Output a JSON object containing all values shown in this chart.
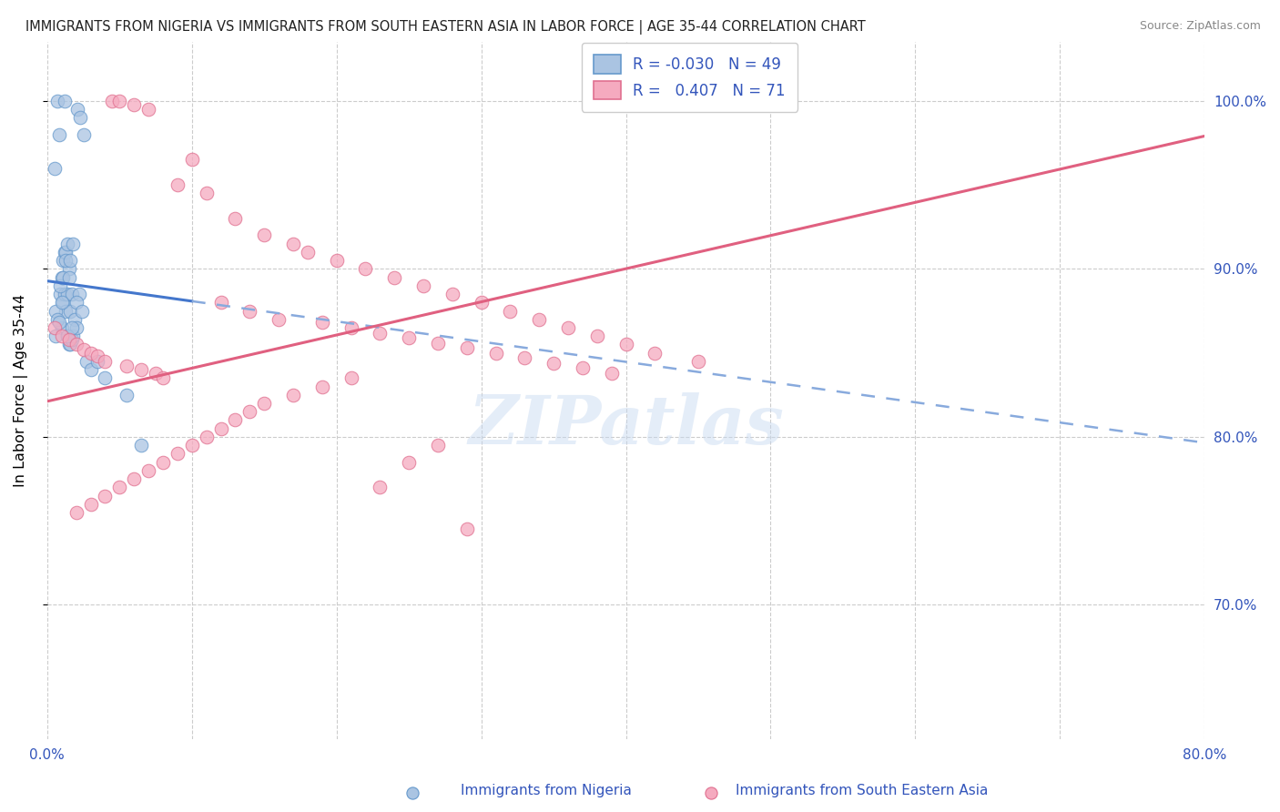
{
  "title": "IMMIGRANTS FROM NIGERIA VS IMMIGRANTS FROM SOUTH EASTERN ASIA IN LABOR FORCE | AGE 35-44 CORRELATION CHART",
  "source": "Source: ZipAtlas.com",
  "ylabel": "In Labor Force | Age 35-44",
  "xlim": [
    0.0,
    80.0
  ],
  "ylim": [
    62.0,
    103.5
  ],
  "nigeria_R": "-0.030",
  "nigeria_N": "49",
  "sea_R": "0.407",
  "sea_N": "71",
  "nigeria_color": "#aac4e2",
  "sea_color": "#f5aabf",
  "nigeria_edge_color": "#6699cc",
  "sea_edge_color": "#e07090",
  "trend_nigeria_solid_color": "#4477cc",
  "trend_nigeria_dash_color": "#88aadd",
  "trend_sea_color": "#e06080",
  "legend_text_color": "#3355bb",
  "watermark": "ZIPatlas",
  "nigeria_x": [
    0.5,
    0.7,
    0.8,
    0.9,
    1.0,
    1.0,
    1.1,
    1.1,
    1.2,
    1.2,
    1.3,
    1.3,
    1.4,
    1.4,
    1.5,
    1.5,
    1.6,
    1.6,
    1.7,
    1.7,
    1.8,
    1.9,
    2.0,
    2.1,
    2.2,
    2.3,
    2.5,
    2.7,
    3.0,
    3.5,
    0.6,
    0.6,
    0.7,
    0.8,
    0.9,
    1.0,
    1.1,
    1.2,
    1.3,
    1.4,
    1.5,
    1.6,
    1.7,
    1.8,
    2.0,
    2.4,
    4.0,
    5.5,
    6.5
  ],
  "nigeria_y": [
    96.0,
    100.0,
    98.0,
    88.5,
    86.5,
    89.5,
    88.0,
    90.5,
    88.5,
    91.0,
    87.5,
    91.0,
    88.5,
    91.5,
    85.5,
    90.0,
    85.5,
    87.5,
    85.8,
    88.5,
    86.0,
    87.0,
    86.5,
    99.5,
    88.5,
    99.0,
    98.0,
    84.5,
    84.0,
    84.5,
    86.0,
    87.5,
    87.0,
    86.8,
    89.0,
    88.0,
    89.5,
    100.0,
    90.5,
    86.0,
    89.5,
    90.5,
    86.5,
    91.5,
    88.0,
    87.5,
    83.5,
    82.5,
    79.5
  ],
  "sea_x": [
    0.5,
    1.0,
    1.5,
    2.0,
    2.5,
    3.0,
    3.5,
    4.0,
    4.5,
    5.0,
    5.5,
    6.0,
    6.5,
    7.0,
    7.5,
    8.0,
    9.0,
    10.0,
    11.0,
    12.0,
    13.0,
    14.0,
    15.0,
    16.0,
    17.0,
    18.0,
    19.0,
    20.0,
    21.0,
    22.0,
    23.0,
    24.0,
    25.0,
    26.0,
    27.0,
    28.0,
    29.0,
    30.0,
    31.0,
    32.0,
    33.0,
    34.0,
    35.0,
    36.0,
    37.0,
    38.0,
    39.0,
    40.0,
    42.0,
    45.0,
    2.0,
    3.0,
    4.0,
    5.0,
    6.0,
    7.0,
    8.0,
    9.0,
    10.0,
    11.0,
    12.0,
    13.0,
    14.0,
    15.0,
    17.0,
    19.0,
    21.0,
    23.0,
    25.0,
    27.0,
    29.0
  ],
  "sea_y": [
    86.5,
    86.0,
    85.8,
    85.5,
    85.2,
    85.0,
    84.8,
    84.5,
    100.0,
    100.0,
    84.2,
    99.8,
    84.0,
    99.5,
    83.8,
    83.5,
    95.0,
    96.5,
    94.5,
    88.0,
    93.0,
    87.5,
    92.0,
    87.0,
    91.5,
    91.0,
    86.8,
    90.5,
    86.5,
    90.0,
    86.2,
    89.5,
    85.9,
    89.0,
    85.6,
    88.5,
    85.3,
    88.0,
    85.0,
    87.5,
    84.7,
    87.0,
    84.4,
    86.5,
    84.1,
    86.0,
    83.8,
    85.5,
    85.0,
    84.5,
    75.5,
    76.0,
    76.5,
    77.0,
    77.5,
    78.0,
    78.5,
    79.0,
    79.5,
    80.0,
    80.5,
    81.0,
    81.5,
    82.0,
    82.5,
    83.0,
    83.5,
    77.0,
    78.5,
    79.5,
    74.5
  ],
  "ytick_positions": [
    70,
    80,
    90,
    100
  ],
  "ytick_labels": [
    "70.0%",
    "80.0%",
    "90.0%",
    "100.0%"
  ],
  "xtick_labels_show": [
    "0.0%",
    "80.0%"
  ],
  "xtick_positions": [
    0,
    10,
    20,
    30,
    40,
    50,
    60,
    70,
    80
  ],
  "grid_color": "#cccccc",
  "background_color": "#ffffff"
}
